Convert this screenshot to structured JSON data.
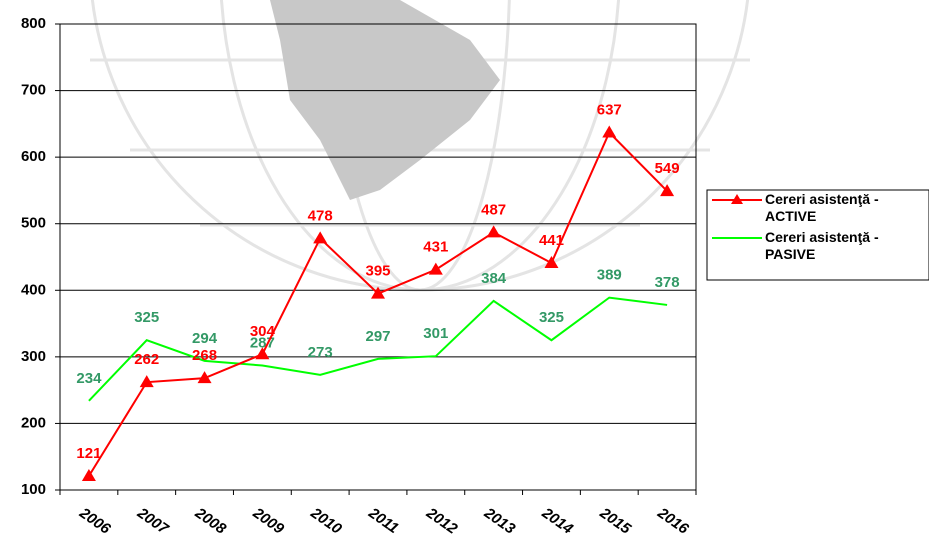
{
  "chart_data": {
    "type": "line",
    "categories": [
      "2006",
      "2007",
      "2008",
      "2009",
      "2010",
      "2011",
      "2012",
      "2013",
      "2014",
      "2015",
      "2016"
    ],
    "series": [
      {
        "name": "Cereri asistenţă - ACTIVE",
        "color": "#ff0000",
        "marker": "triangle",
        "values": [
          121,
          262,
          268,
          304,
          478,
          395,
          431,
          487,
          441,
          637,
          549
        ]
      },
      {
        "name": "Cereri asistenţă - PASIVE",
        "color": "#00ff00",
        "label_color": "#339966",
        "values": [
          234,
          325,
          294,
          287,
          273,
          297,
          301,
          384,
          325,
          389,
          378
        ]
      }
    ],
    "ylim": [
      100,
      800
    ],
    "yticks": [
      100,
      200,
      300,
      400,
      500,
      600,
      700,
      800
    ],
    "grid": true,
    "legend": "right"
  }
}
